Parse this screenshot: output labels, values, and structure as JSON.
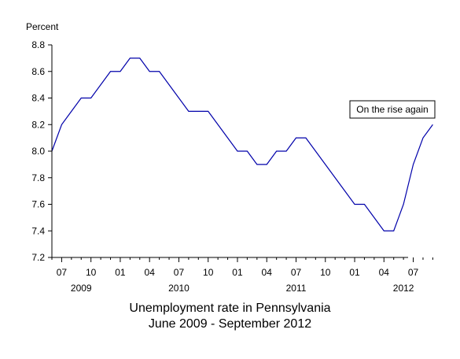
{
  "chart_data": {
    "type": "line",
    "ylabel": "Percent",
    "ylim": [
      7.2,
      8.8
    ],
    "yticks": [
      "7.2",
      "7.4",
      "7.6",
      "7.8",
      "8.0",
      "8.2",
      "8.4",
      "8.6",
      "8.8"
    ],
    "grid": false,
    "x": [
      "2009-06",
      "2009-07",
      "2009-08",
      "2009-09",
      "2009-10",
      "2009-11",
      "2009-12",
      "2010-01",
      "2010-02",
      "2010-03",
      "2010-04",
      "2010-05",
      "2010-06",
      "2010-07",
      "2010-08",
      "2010-09",
      "2010-10",
      "2010-11",
      "2010-12",
      "2011-01",
      "2011-02",
      "2011-03",
      "2011-04",
      "2011-05",
      "2011-06",
      "2011-07",
      "2011-08",
      "2011-09",
      "2011-10",
      "2011-11",
      "2011-12",
      "2012-01",
      "2012-02",
      "2012-03",
      "2012-04",
      "2012-05",
      "2012-06",
      "2012-07",
      "2012-08",
      "2012-09"
    ],
    "series": [
      {
        "values": [
          8.0,
          8.2,
          8.3,
          8.4,
          8.4,
          8.5,
          8.6,
          8.6,
          8.7,
          8.7,
          8.6,
          8.6,
          8.5,
          8.4,
          8.3,
          8.3,
          8.3,
          8.2,
          8.1,
          8.0,
          8.0,
          7.9,
          7.9,
          8.0,
          8.0,
          8.1,
          8.1,
          8.0,
          7.9,
          7.8,
          7.7,
          7.6,
          7.6,
          7.5,
          7.4,
          7.4,
          7.6,
          7.9,
          8.1,
          8.2
        ],
        "color": "#0000aa"
      }
    ],
    "x_tick_labels": [
      {
        "month": "2009-07",
        "label": "07"
      },
      {
        "month": "2009-10",
        "label": "10"
      },
      {
        "month": "2010-01",
        "label": "01"
      },
      {
        "month": "2010-04",
        "label": "04"
      },
      {
        "month": "2010-07",
        "label": "07"
      },
      {
        "month": "2010-10",
        "label": "10"
      },
      {
        "month": "2011-01",
        "label": "01"
      },
      {
        "month": "2011-04",
        "label": "04"
      },
      {
        "month": "2011-07",
        "label": "07"
      },
      {
        "month": "2011-10",
        "label": "10"
      },
      {
        "month": "2012-01",
        "label": "01"
      },
      {
        "month": "2012-04",
        "label": "04"
      },
      {
        "month": "2012-07",
        "label": "07"
      }
    ],
    "year_labels": [
      {
        "month": "2009-09",
        "label": "2009"
      },
      {
        "month": "2010-07",
        "label": "2010"
      },
      {
        "month": "2011-07",
        "label": "2011"
      },
      {
        "month": "2012-06",
        "label": "2012"
      }
    ],
    "annotation": {
      "text": "On the rise again",
      "month": "2012-09",
      "value": 8.2
    },
    "caption": {
      "line1": "Unemployment rate in Pennsylvania",
      "line2": "June 2009 - September 2012"
    }
  }
}
